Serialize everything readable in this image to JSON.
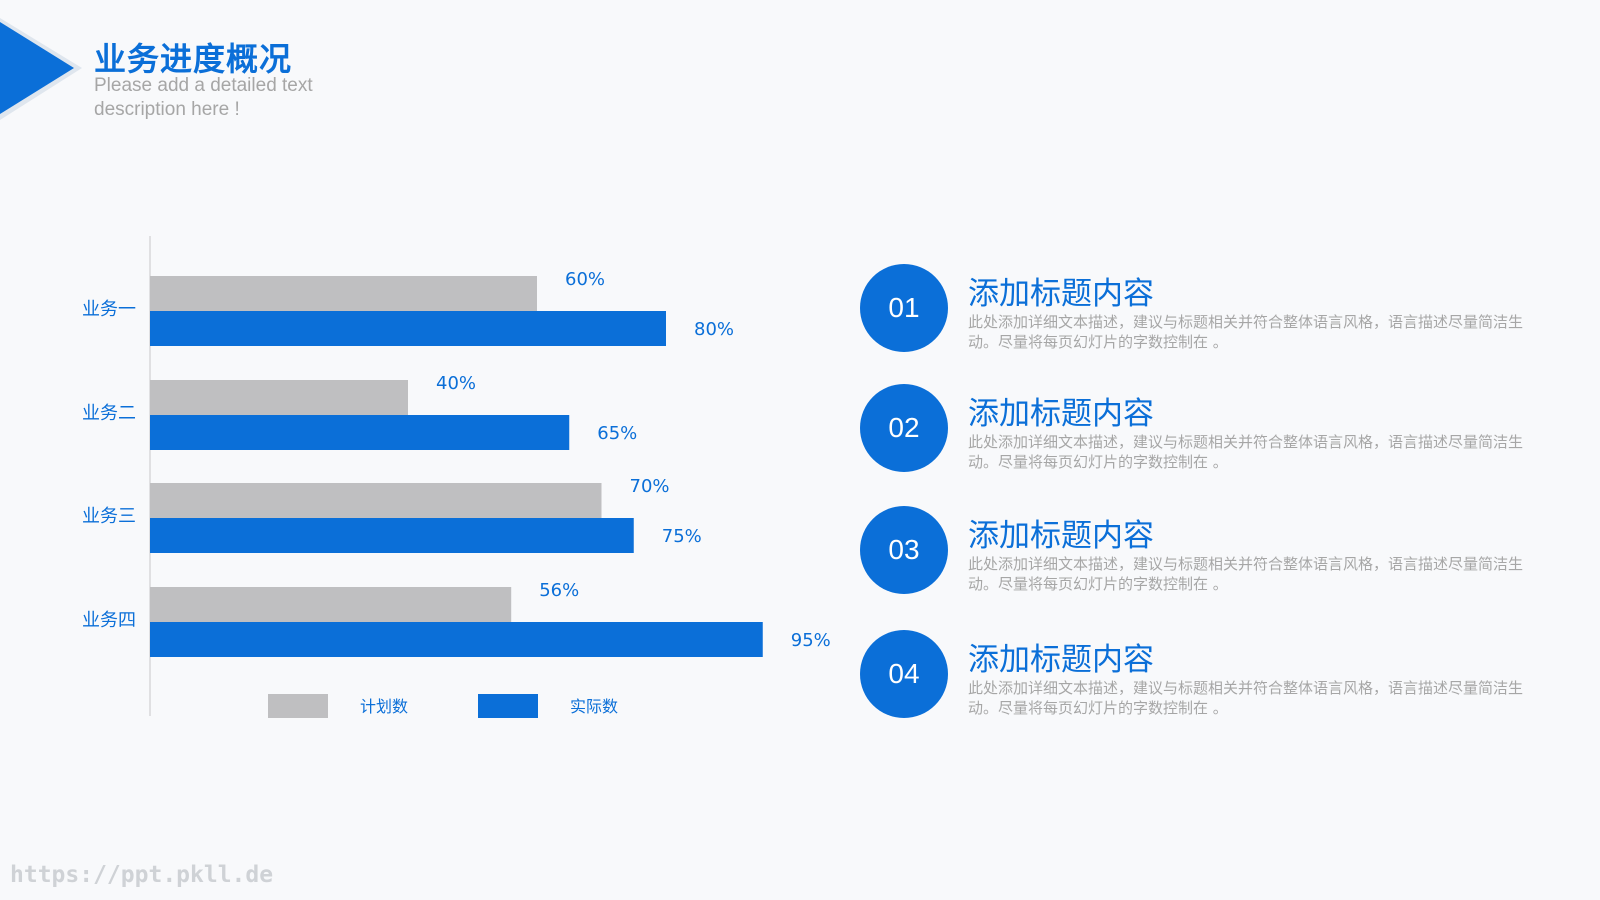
{
  "header": {
    "title": "业务进度概况",
    "subtitle": "Please add a detailed text description here !"
  },
  "colors": {
    "accent": "#0b6fd8",
    "plan": "#bfbfc1",
    "muted": "#a6a6a6"
  },
  "chart_data": {
    "type": "bar",
    "orientation": "horizontal",
    "categories": [
      "业务一",
      "业务二",
      "业务三",
      "业务四"
    ],
    "series": [
      {
        "name": "计划数",
        "values": [
          60,
          40,
          70,
          56
        ],
        "color": "#bfbfc1"
      },
      {
        "name": "实际数",
        "values": [
          80,
          65,
          75,
          95
        ],
        "color": "#0b6fd8"
      }
    ],
    "value_labels": [
      [
        "60%",
        "40%",
        "70%",
        "56%"
      ],
      [
        "80%",
        "65%",
        "75%",
        "95%"
      ]
    ],
    "xlim": [
      0,
      100
    ],
    "grid": false,
    "legend_position": "bottom"
  },
  "items": [
    {
      "number": "01",
      "title": "添加标题内容",
      "desc": "此处添加详细文本描述，建议与标题相关并符合整体语言风格，语言描述尽量简洁生动。尽量将每页幻灯片的字数控制在 。"
    },
    {
      "number": "02",
      "title": "添加标题内容",
      "desc": "此处添加详细文本描述，建议与标题相关并符合整体语言风格，语言描述尽量简洁生动。尽量将每页幻灯片的字数控制在 。"
    },
    {
      "number": "03",
      "title": "添加标题内容",
      "desc": "此处添加详细文本描述，建议与标题相关并符合整体语言风格，语言描述尽量简洁生动。尽量将每页幻灯片的字数控制在 。"
    },
    {
      "number": "04",
      "title": "添加标题内容",
      "desc": "此处添加详细文本描述，建议与标题相关并符合整体语言风格，语言描述尽量简洁生动。尽量将每页幻灯片的字数控制在 。"
    }
  ],
  "footer": {
    "url": "https://ppt.pkll.de"
  }
}
